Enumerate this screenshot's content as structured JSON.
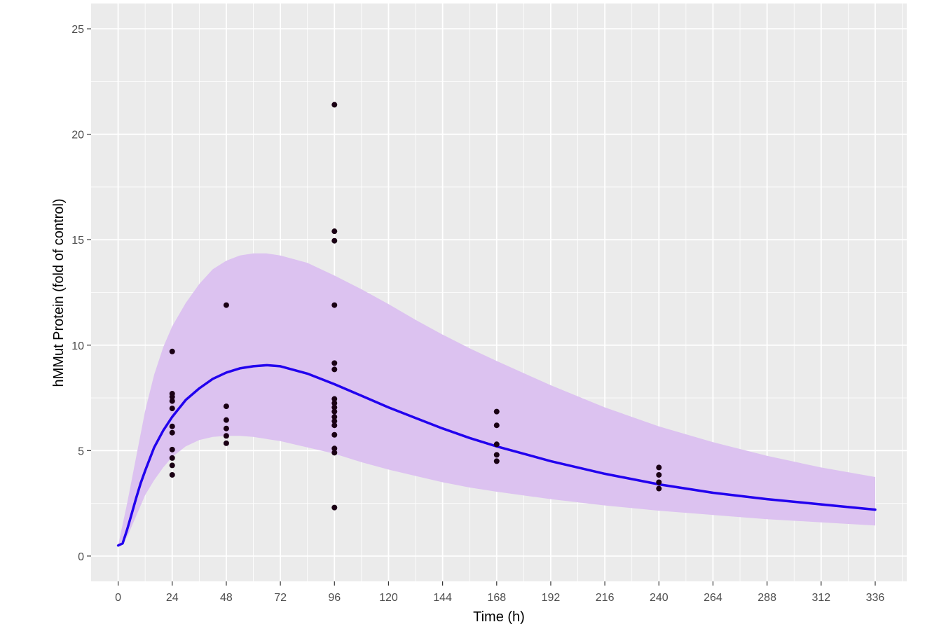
{
  "chart_data": {
    "type": "line",
    "title": "",
    "xlabel": "Time (h)",
    "ylabel": "hMMut Protein (fold of control)",
    "xlim": [
      -12,
      350
    ],
    "ylim": [
      -1.2,
      26.2
    ],
    "x_ticks": [
      0,
      24,
      48,
      72,
      96,
      120,
      144,
      168,
      192,
      216,
      240,
      264,
      288,
      312,
      336
    ],
    "x_tick_labels": [
      "0",
      "24",
      "48",
      "72",
      "96",
      "120",
      "144",
      "168",
      "192",
      "216",
      "240",
      "264",
      "288",
      "312",
      "336"
    ],
    "y_ticks": [
      0,
      5,
      10,
      15,
      20,
      25
    ],
    "y_tick_labels": [
      "0",
      "5",
      "10",
      "15",
      "20",
      "25"
    ],
    "grid": true,
    "background": "#ebebeb",
    "gridline_color": "#ffffff",
    "band_color": "#dcc2f0",
    "line_color": "#2200ee",
    "point_color": "#1a0014",
    "band": {
      "x": [
        0,
        4,
        8,
        12,
        16,
        20,
        24,
        30,
        36,
        42,
        48,
        54,
        60,
        66,
        72,
        84,
        96,
        108,
        120,
        132,
        144,
        156,
        168,
        192,
        216,
        240,
        264,
        288,
        312,
        336
      ],
      "lower": [
        0.5,
        0.9,
        1.9,
        2.9,
        3.6,
        4.2,
        4.7,
        5.2,
        5.5,
        5.65,
        5.7,
        5.7,
        5.65,
        5.55,
        5.45,
        5.15,
        4.85,
        4.45,
        4.1,
        3.8,
        3.5,
        3.25,
        3.05,
        2.7,
        2.4,
        2.15,
        1.95,
        1.75,
        1.6,
        1.45
      ],
      "upper": [
        0.5,
        2.5,
        4.7,
        6.9,
        8.6,
        9.9,
        10.9,
        12.0,
        12.9,
        13.6,
        14.0,
        14.25,
        14.35,
        14.35,
        14.25,
        13.9,
        13.3,
        12.65,
        11.95,
        11.2,
        10.5,
        9.85,
        9.25,
        8.1,
        7.05,
        6.15,
        5.4,
        4.75,
        4.2,
        3.75
      ]
    },
    "series": [
      {
        "type": "line",
        "x": [
          0,
          2,
          4,
          6,
          8,
          10,
          12,
          16,
          20,
          24,
          30,
          36,
          42,
          48,
          54,
          60,
          66,
          72,
          84,
          96,
          108,
          120,
          132,
          144,
          156,
          168,
          192,
          216,
          240,
          264,
          288,
          312,
          336
        ],
        "y": [
          0.5,
          0.6,
          1.25,
          2.0,
          2.75,
          3.45,
          4.05,
          5.15,
          5.95,
          6.6,
          7.4,
          7.95,
          8.4,
          8.7,
          8.9,
          9.0,
          9.05,
          9.0,
          8.65,
          8.15,
          7.6,
          7.05,
          6.55,
          6.05,
          5.6,
          5.2,
          4.5,
          3.9,
          3.4,
          3.0,
          2.7,
          2.45,
          2.2
        ]
      },
      {
        "type": "scatter",
        "points": [
          [
            24,
            9.7
          ],
          [
            24,
            7.7
          ],
          [
            24,
            7.55
          ],
          [
            24,
            7.35
          ],
          [
            24,
            7.0
          ],
          [
            24,
            6.15
          ],
          [
            24,
            5.85
          ],
          [
            24,
            5.05
          ],
          [
            24,
            4.65
          ],
          [
            24,
            4.3
          ],
          [
            24,
            3.85
          ],
          [
            48,
            11.9
          ],
          [
            48,
            7.1
          ],
          [
            48,
            6.45
          ],
          [
            48,
            6.05
          ],
          [
            48,
            5.7
          ],
          [
            48,
            5.35
          ],
          [
            96,
            21.4
          ],
          [
            96,
            15.4
          ],
          [
            96,
            14.95
          ],
          [
            96,
            11.9
          ],
          [
            96,
            9.15
          ],
          [
            96,
            8.85
          ],
          [
            96,
            7.45
          ],
          [
            96,
            7.25
          ],
          [
            96,
            7.05
          ],
          [
            96,
            6.85
          ],
          [
            96,
            6.6
          ],
          [
            96,
            6.4
          ],
          [
            96,
            6.2
          ],
          [
            96,
            5.75
          ],
          [
            96,
            5.1
          ],
          [
            96,
            4.9
          ],
          [
            96,
            2.3
          ],
          [
            168,
            6.85
          ],
          [
            168,
            6.2
          ],
          [
            168,
            5.3
          ],
          [
            168,
            4.8
          ],
          [
            168,
            4.5
          ],
          [
            240,
            4.2
          ],
          [
            240,
            3.85
          ],
          [
            240,
            3.5
          ],
          [
            240,
            3.2
          ]
        ]
      }
    ]
  }
}
